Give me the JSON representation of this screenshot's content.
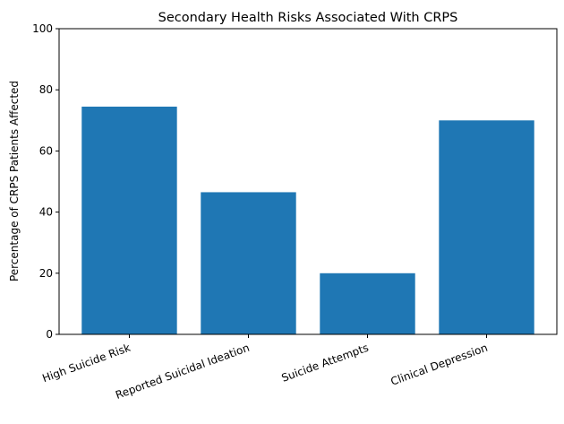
{
  "chart_data": {
    "type": "bar",
    "title": "Secondary Health Risks Associated With CRPS",
    "xlabel": "",
    "ylabel": "Percentage of CRPS Patients Affected",
    "categories": [
      "High Suicide Risk",
      "Reported Suicidal Ideation",
      "Suicide Attempts",
      "Clinical Depression"
    ],
    "values": [
      74.5,
      46.5,
      20,
      70
    ],
    "ylim": [
      0,
      100
    ],
    "yticks": [
      0,
      20,
      40,
      60,
      80,
      100
    ],
    "grid": false,
    "bar_color": "#1f77b4"
  }
}
